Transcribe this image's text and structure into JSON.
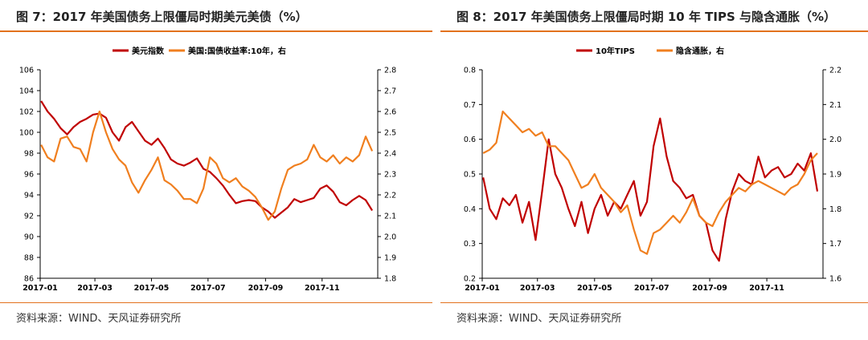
{
  "colors": {
    "accent_rule": "#E2711D",
    "series_red": "#C00000",
    "series_orange": "#F07F1F"
  },
  "charts": [
    {
      "title": "图 7：2017 年美国债务上限僵局时期美元美债（%）",
      "source": "资料来源：WIND、天风证券研究所"
    },
    {
      "title": "图 8：2017 年美国债务上限僵局时期 10 年 TIPS 与隐含通胀（%）",
      "source": "资料来源：WIND、天风证券研究所"
    }
  ],
  "chart_data": [
    {
      "type": "line",
      "title": "",
      "x_ticks": [
        "2017-01",
        "2017-03",
        "2017-05",
        "2017-07",
        "2017-09",
        "2017-11"
      ],
      "xlim": [
        "2017-01-01",
        "2017-12-31"
      ],
      "ylim_left": [
        86,
        106
      ],
      "yticks_left": [
        86,
        88,
        90,
        92,
        94,
        96,
        98,
        100,
        102,
        104,
        106
      ],
      "ylim_right": [
        1.8,
        2.8
      ],
      "yticks_right": [
        1.8,
        1.9,
        2.0,
        2.1,
        2.2,
        2.3,
        2.4,
        2.5,
        2.6,
        2.7,
        2.8
      ],
      "legend_position": "top-center",
      "series": [
        {
          "name": "美元指数",
          "axis": "left",
          "color": "#C00000",
          "x": [
            "2017-01-02",
            "2017-01-09",
            "2017-01-16",
            "2017-01-23",
            "2017-01-30",
            "2017-02-06",
            "2017-02-13",
            "2017-02-20",
            "2017-02-27",
            "2017-03-06",
            "2017-03-13",
            "2017-03-20",
            "2017-03-27",
            "2017-04-03",
            "2017-04-10",
            "2017-04-17",
            "2017-04-24",
            "2017-05-01",
            "2017-05-08",
            "2017-05-15",
            "2017-05-22",
            "2017-05-29",
            "2017-06-05",
            "2017-06-12",
            "2017-06-19",
            "2017-06-26",
            "2017-07-03",
            "2017-07-10",
            "2017-07-17",
            "2017-07-24",
            "2017-07-31",
            "2017-08-07",
            "2017-08-14",
            "2017-08-21",
            "2017-08-28",
            "2017-09-04",
            "2017-09-11",
            "2017-09-18",
            "2017-09-25",
            "2017-10-02",
            "2017-10-09",
            "2017-10-16",
            "2017-10-23",
            "2017-10-30",
            "2017-11-06",
            "2017-11-13",
            "2017-11-20",
            "2017-11-27",
            "2017-12-04",
            "2017-12-11",
            "2017-12-18",
            "2017-12-25"
          ],
          "values": [
            103.0,
            102.0,
            101.3,
            100.4,
            99.8,
            100.5,
            101.0,
            101.3,
            101.7,
            101.8,
            101.4,
            100.0,
            99.2,
            100.5,
            101.0,
            100.1,
            99.2,
            98.8,
            99.4,
            98.5,
            97.4,
            97.0,
            96.8,
            97.1,
            97.5,
            96.5,
            96.2,
            95.6,
            94.9,
            94.0,
            93.2,
            93.4,
            93.5,
            93.4,
            92.8,
            92.4,
            91.8,
            92.3,
            92.8,
            93.6,
            93.3,
            93.5,
            93.7,
            94.6,
            94.9,
            94.3,
            93.3,
            93.0,
            93.5,
            93.9,
            93.5,
            92.5
          ]
        },
        {
          "name": "美国:国债收益率:10年，右",
          "axis": "right",
          "color": "#F07F1F",
          "x": [
            "2017-01-02",
            "2017-01-09",
            "2017-01-16",
            "2017-01-23",
            "2017-01-30",
            "2017-02-06",
            "2017-02-13",
            "2017-02-20",
            "2017-02-27",
            "2017-03-06",
            "2017-03-13",
            "2017-03-20",
            "2017-03-27",
            "2017-04-03",
            "2017-04-10",
            "2017-04-17",
            "2017-04-24",
            "2017-05-01",
            "2017-05-08",
            "2017-05-15",
            "2017-05-22",
            "2017-05-29",
            "2017-06-05",
            "2017-06-12",
            "2017-06-19",
            "2017-06-26",
            "2017-07-03",
            "2017-07-10",
            "2017-07-17",
            "2017-07-24",
            "2017-07-31",
            "2017-08-07",
            "2017-08-14",
            "2017-08-21",
            "2017-08-28",
            "2017-09-04",
            "2017-09-11",
            "2017-09-18",
            "2017-09-25",
            "2017-10-02",
            "2017-10-09",
            "2017-10-16",
            "2017-10-23",
            "2017-10-30",
            "2017-11-06",
            "2017-11-13",
            "2017-11-20",
            "2017-11-27",
            "2017-12-04",
            "2017-12-11",
            "2017-12-18",
            "2017-12-25"
          ],
          "values": [
            2.44,
            2.38,
            2.36,
            2.47,
            2.48,
            2.43,
            2.42,
            2.36,
            2.5,
            2.6,
            2.5,
            2.42,
            2.37,
            2.34,
            2.26,
            2.21,
            2.27,
            2.32,
            2.38,
            2.27,
            2.25,
            2.22,
            2.18,
            2.18,
            2.16,
            2.23,
            2.38,
            2.35,
            2.28,
            2.26,
            2.28,
            2.24,
            2.22,
            2.19,
            2.14,
            2.08,
            2.12,
            2.23,
            2.32,
            2.34,
            2.35,
            2.37,
            2.44,
            2.38,
            2.36,
            2.39,
            2.35,
            2.38,
            2.36,
            2.39,
            2.48,
            2.41
          ]
        }
      ]
    },
    {
      "type": "line",
      "title": "",
      "x_ticks": [
        "2017-01",
        "2017-03",
        "2017-05",
        "2017-07",
        "2017-09",
        "2017-11"
      ],
      "xlim": [
        "2017-01-01",
        "2017-12-31"
      ],
      "ylim_left": [
        0.2,
        0.8
      ],
      "yticks_left": [
        0.2,
        0.3,
        0.4,
        0.5,
        0.6,
        0.7,
        0.8
      ],
      "ylim_right": [
        1.6,
        2.2
      ],
      "yticks_right": [
        1.6,
        1.7,
        1.8,
        1.9,
        2.0,
        2.1,
        2.2
      ],
      "legend_position": "top-center",
      "series": [
        {
          "name": "10年TIPS",
          "axis": "left",
          "color": "#C00000",
          "x": [
            "2017-01-02",
            "2017-01-09",
            "2017-01-16",
            "2017-01-23",
            "2017-01-30",
            "2017-02-06",
            "2017-02-13",
            "2017-02-20",
            "2017-02-27",
            "2017-03-06",
            "2017-03-13",
            "2017-03-20",
            "2017-03-27",
            "2017-04-03",
            "2017-04-10",
            "2017-04-17",
            "2017-04-24",
            "2017-05-01",
            "2017-05-08",
            "2017-05-15",
            "2017-05-22",
            "2017-05-29",
            "2017-06-05",
            "2017-06-12",
            "2017-06-19",
            "2017-06-26",
            "2017-07-03",
            "2017-07-10",
            "2017-07-17",
            "2017-07-24",
            "2017-07-31",
            "2017-08-07",
            "2017-08-14",
            "2017-08-21",
            "2017-08-28",
            "2017-09-04",
            "2017-09-11",
            "2017-09-18",
            "2017-09-25",
            "2017-10-02",
            "2017-10-09",
            "2017-10-16",
            "2017-10-23",
            "2017-10-30",
            "2017-11-06",
            "2017-11-13",
            "2017-11-20",
            "2017-11-27",
            "2017-12-04",
            "2017-12-11",
            "2017-12-18",
            "2017-12-25"
          ],
          "values": [
            0.49,
            0.4,
            0.37,
            0.43,
            0.41,
            0.44,
            0.36,
            0.42,
            0.31,
            0.45,
            0.6,
            0.5,
            0.46,
            0.4,
            0.35,
            0.42,
            0.33,
            0.4,
            0.44,
            0.38,
            0.42,
            0.4,
            0.44,
            0.48,
            0.38,
            0.42,
            0.58,
            0.66,
            0.55,
            0.48,
            0.46,
            0.43,
            0.44,
            0.38,
            0.36,
            0.28,
            0.25,
            0.37,
            0.45,
            0.5,
            0.48,
            0.47,
            0.55,
            0.49,
            0.51,
            0.52,
            0.49,
            0.5,
            0.53,
            0.51,
            0.56,
            0.45
          ]
        },
        {
          "name": "隐含通胀，右",
          "axis": "right",
          "color": "#F07F1F",
          "x": [
            "2017-01-02",
            "2017-01-09",
            "2017-01-16",
            "2017-01-23",
            "2017-01-30",
            "2017-02-06",
            "2017-02-13",
            "2017-02-20",
            "2017-02-27",
            "2017-03-06",
            "2017-03-13",
            "2017-03-20",
            "2017-03-27",
            "2017-04-03",
            "2017-04-10",
            "2017-04-17",
            "2017-04-24",
            "2017-05-01",
            "2017-05-08",
            "2017-05-15",
            "2017-05-22",
            "2017-05-29",
            "2017-06-05",
            "2017-06-12",
            "2017-06-19",
            "2017-06-26",
            "2017-07-03",
            "2017-07-10",
            "2017-07-17",
            "2017-07-24",
            "2017-07-31",
            "2017-08-07",
            "2017-08-14",
            "2017-08-21",
            "2017-08-28",
            "2017-09-04",
            "2017-09-11",
            "2017-09-18",
            "2017-09-25",
            "2017-10-02",
            "2017-10-09",
            "2017-10-16",
            "2017-10-23",
            "2017-10-30",
            "2017-11-06",
            "2017-11-13",
            "2017-11-20",
            "2017-11-27",
            "2017-12-04",
            "2017-12-11",
            "2017-12-18",
            "2017-12-25"
          ],
          "values": [
            1.96,
            1.97,
            1.99,
            2.08,
            2.06,
            2.04,
            2.02,
            2.03,
            2.01,
            2.02,
            1.98,
            1.98,
            1.96,
            1.94,
            1.9,
            1.86,
            1.87,
            1.9,
            1.86,
            1.84,
            1.82,
            1.79,
            1.81,
            1.74,
            1.68,
            1.67,
            1.73,
            1.74,
            1.76,
            1.78,
            1.76,
            1.79,
            1.83,
            1.78,
            1.76,
            1.75,
            1.79,
            1.82,
            1.84,
            1.86,
            1.85,
            1.87,
            1.88,
            1.87,
            1.86,
            1.85,
            1.84,
            1.86,
            1.87,
            1.9,
            1.94,
            1.96
          ]
        }
      ]
    }
  ]
}
